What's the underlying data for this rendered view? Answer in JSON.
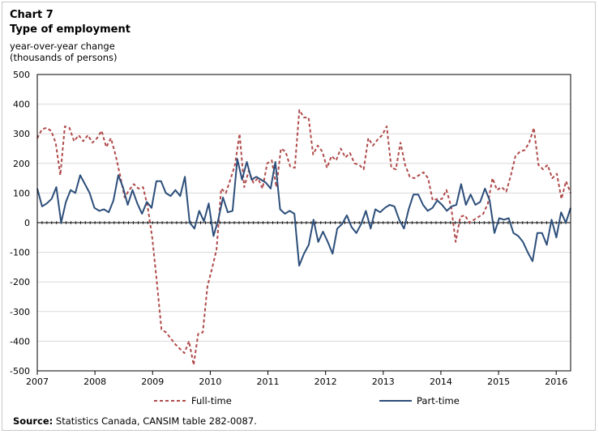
{
  "chart_data": {
    "type": "line",
    "chart_number": "Chart 7",
    "title": "Type of employment",
    "ylabel_line1": "year-over-year change",
    "ylabel_line2": "(thousands of persons)",
    "ylim": [
      -500,
      500
    ],
    "yticks": [
      500,
      400,
      300,
      200,
      100,
      0,
      -100,
      -200,
      -300,
      -400,
      -500
    ],
    "xlim": [
      2007,
      2016.25
    ],
    "xticks": [
      "2007",
      "2008",
      "2009",
      "2010",
      "2011",
      "2012",
      "2013",
      "2014",
      "2015",
      "2016"
    ],
    "series": [
      {
        "name": "Full-time",
        "color": "#b04a4a",
        "dash": true,
        "values": [
          285,
          315,
          320,
          310,
          270,
          160,
          325,
          320,
          275,
          295,
          275,
          295,
          270,
          285,
          310,
          255,
          285,
          230,
          160,
          85,
          110,
          130,
          115,
          120,
          55,
          -50,
          -200,
          -360,
          -370,
          -390,
          -410,
          -425,
          -440,
          -400,
          -480,
          -375,
          -370,
          -215,
          -155,
          -90,
          115,
          100,
          145,
          195,
          300,
          120,
          175,
          135,
          150,
          115,
          200,
          210,
          120,
          250,
          240,
          190,
          185,
          380,
          355,
          355,
          230,
          260,
          240,
          185,
          225,
          210,
          250,
          220,
          235,
          200,
          195,
          180,
          285,
          260,
          280,
          295,
          325,
          185,
          180,
          270,
          195,
          155,
          150,
          160,
          170,
          150,
          75,
          80,
          80,
          110,
          55,
          -65,
          20,
          25,
          0,
          10,
          20,
          30,
          65,
          150,
          110,
          120,
          105,
          160,
          225,
          240,
          245,
          270,
          320,
          195,
          180,
          195,
          150,
          165,
          80,
          140,
          100
        ],
        "label_ft": "Full-time"
      },
      {
        "name": "Part-time",
        "color": "#2c4e7a",
        "dash": false,
        "values": [
          115,
          55,
          65,
          80,
          120,
          0,
          70,
          110,
          100,
          160,
          130,
          100,
          50,
          40,
          45,
          35,
          75,
          160,
          120,
          60,
          110,
          65,
          30,
          70,
          50,
          140,
          140,
          100,
          90,
          110,
          90,
          155,
          0,
          -20,
          40,
          5,
          65,
          -45,
          10,
          85,
          35,
          40,
          215,
          145,
          205,
          145,
          155,
          145,
          135,
          115,
          205,
          45,
          30,
          40,
          30,
          -145,
          -105,
          -75,
          10,
          -65,
          -30,
          -65,
          -105,
          -20,
          -5,
          25,
          -15,
          -35,
          -5,
          40,
          -20,
          45,
          35,
          50,
          60,
          55,
          10,
          -20,
          45,
          95,
          95,
          60,
          40,
          50,
          75,
          60,
          40,
          55,
          60,
          130,
          60,
          95,
          60,
          70,
          115,
          75,
          -35,
          15,
          10,
          15,
          -35,
          -45,
          -65,
          -100,
          -130,
          -35,
          -35,
          -75,
          10,
          -50,
          35,
          0,
          50
        ]
      }
    ]
  },
  "legend": {
    "full_time": "Full-time",
    "part_time": "Part-time"
  },
  "source": {
    "label": "Source:",
    "text": "Statistics Canada, CANSIM table 282-0087."
  }
}
